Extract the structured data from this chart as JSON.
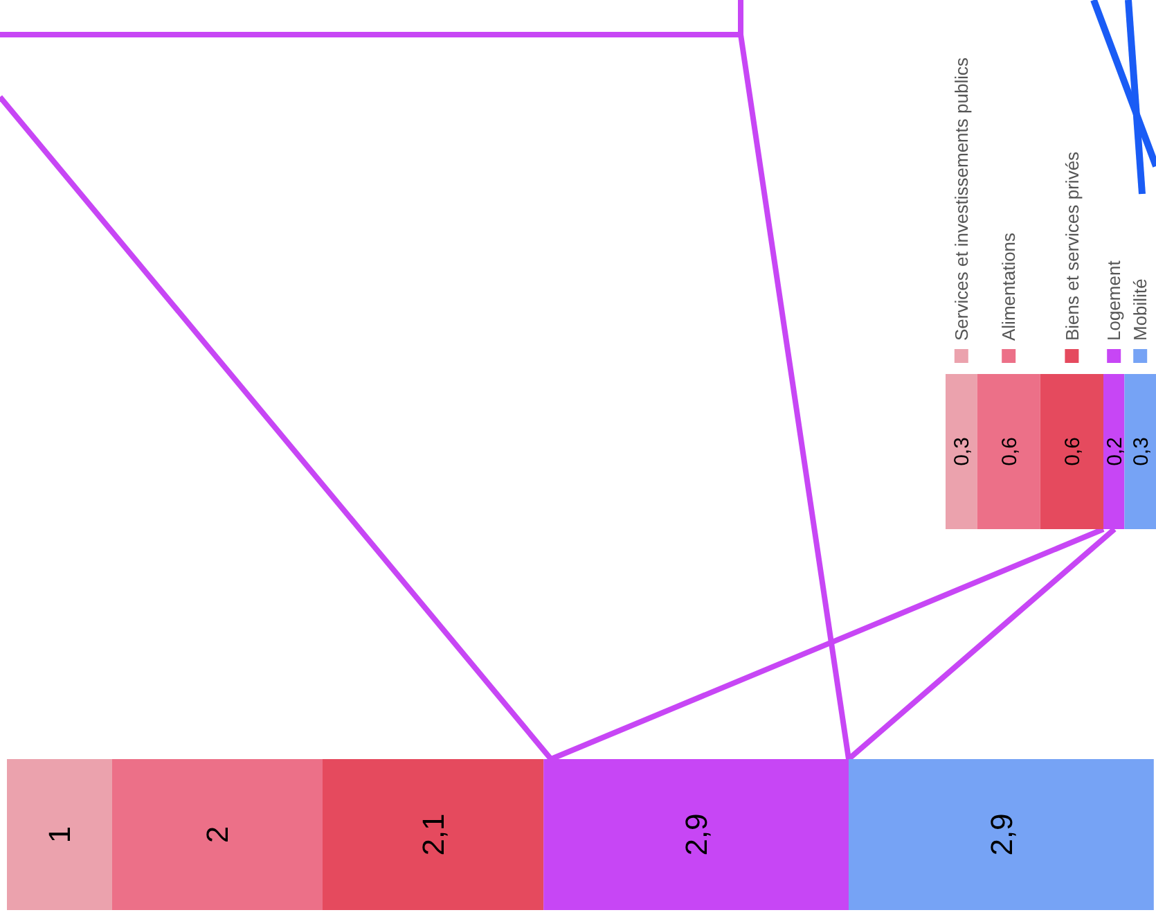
{
  "chart_data": [
    {
      "type": "bar",
      "stacked": true,
      "orientation": "horizontal",
      "categories": [
        null
      ],
      "legend": false,
      "series": [
        {
          "color": "#eba2ad",
          "values": [
            1
          ],
          "value_labels": [
            "1"
          ]
        },
        {
          "color": "#ec7088",
          "values": [
            2
          ],
          "value_labels": [
            "2"
          ]
        },
        {
          "color": "#e54a5e",
          "values": [
            2.1
          ],
          "value_labels": [
            "2,1"
          ]
        },
        {
          "color": "#c746f5",
          "values": [
            2.9
          ],
          "value_labels": [
            "2,9"
          ]
        },
        {
          "color": "#76a3f5",
          "values": [
            2.9
          ],
          "value_labels": [
            "2,9"
          ]
        }
      ]
    },
    {
      "type": "bar",
      "stacked": true,
      "orientation": "horizontal",
      "categories": [
        null
      ],
      "legend": "top",
      "series": [
        {
          "name": "Services et investissements publics",
          "color": "#eba2ad",
          "values": [
            0.3
          ],
          "value_labels": [
            "0,3"
          ]
        },
        {
          "name": "Alimentations",
          "color": "#ec7088",
          "values": [
            0.6
          ],
          "value_labels": [
            "0,6"
          ]
        },
        {
          "name": "Biens et services privés",
          "color": "#e54a5e",
          "values": [
            0.6
          ],
          "value_labels": [
            "0,6"
          ]
        },
        {
          "name": "Logement",
          "color": "#c746f5",
          "values": [
            0.2
          ],
          "value_labels": [
            "0,2"
          ]
        },
        {
          "name": "Mobilité",
          "color": "#76a3f5",
          "values": [
            0.3
          ],
          "value_labels": [
            "0,3"
          ]
        }
      ]
    }
  ]
}
